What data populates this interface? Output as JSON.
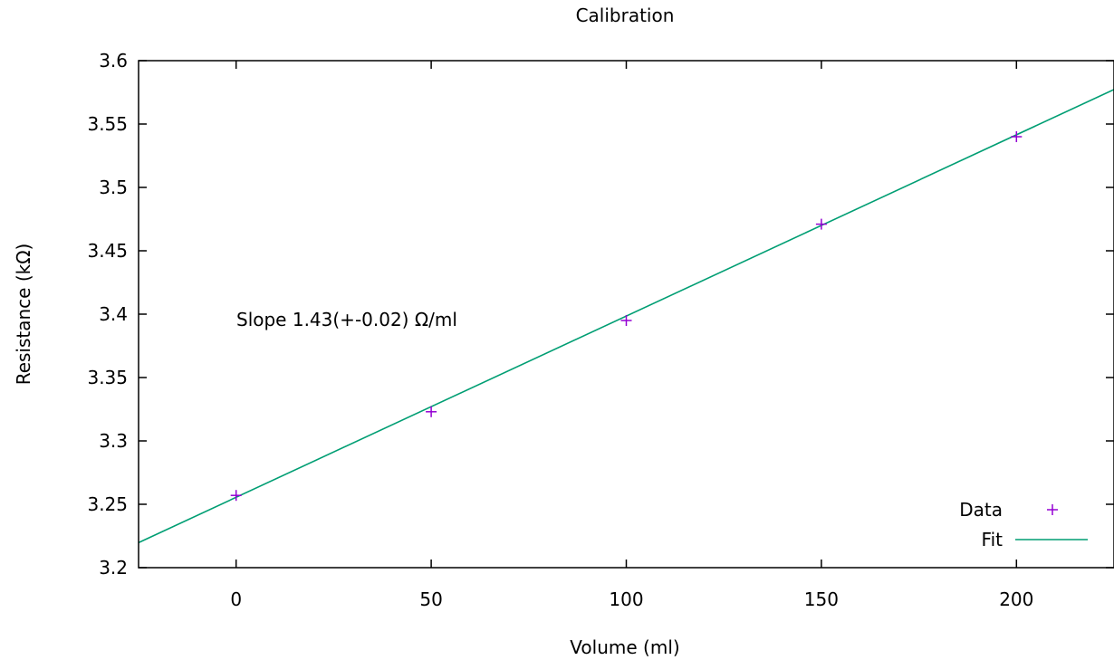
{
  "chart_data": {
    "type": "scatter",
    "title": "Calibration",
    "xlabel": "Volume (ml)",
    "ylabel": "Resistance (kΩ)",
    "xlim": [
      -25,
      225
    ],
    "ylim": [
      3.2,
      3.6
    ],
    "xticks": [
      0,
      50,
      100,
      150,
      200
    ],
    "yticks": [
      3.2,
      3.25,
      3.3,
      3.35,
      3.4,
      3.45,
      3.5,
      3.55,
      3.6
    ],
    "xtick_labels": [
      "0",
      "50",
      "100",
      "150",
      "200"
    ],
    "ytick_labels": [
      "3.2",
      "3.25",
      "3.3",
      "3.35",
      "3.4",
      "3.45",
      "3.5",
      "3.55",
      "3.6"
    ],
    "grid": false,
    "legend_position": "bottom-right",
    "annotation": "Slope 1.43(+-0.02) Ω/ml",
    "series": [
      {
        "name": "Data",
        "kind": "points",
        "marker": "plus",
        "color": "#9400d3",
        "x": [
          0,
          50,
          100,
          150,
          200
        ],
        "y": [
          3.257,
          3.323,
          3.395,
          3.471,
          3.54
        ]
      },
      {
        "name": "Fit",
        "kind": "line",
        "color": "#009e73",
        "slope": 0.00143,
        "intercept": 3.2555
      }
    ]
  }
}
